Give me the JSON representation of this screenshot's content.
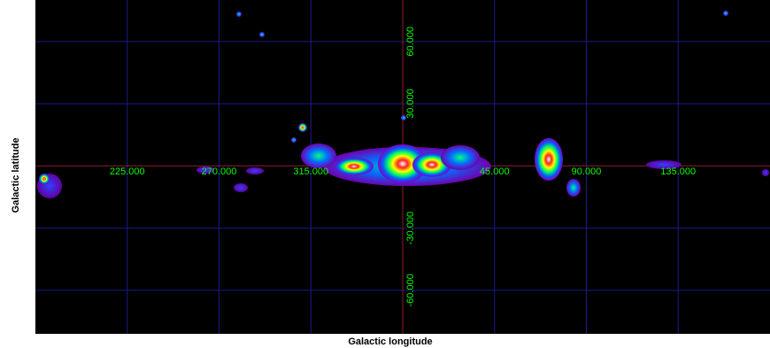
{
  "chart_data": {
    "type": "skymap",
    "xlabel": "Galactic longitude",
    "ylabel": "Galactic latitude",
    "xlim": [
      180,
      540
    ],
    "ylim": [
      -81,
      80
    ],
    "xticks": [
      {
        "value": 225,
        "label": "225.000"
      },
      {
        "value": 270,
        "label": "270.000"
      },
      {
        "value": 315,
        "label": "315.000"
      },
      {
        "value": 45,
        "label": "45.000"
      },
      {
        "value": 90,
        "label": "90.000"
      },
      {
        "value": 135,
        "label": "135.000"
      }
    ],
    "yticks": [
      {
        "value": 60,
        "label": "60.000"
      },
      {
        "value": 30,
        "label": "30.000"
      },
      {
        "value": -30,
        "label": "-30.000"
      },
      {
        "value": -60,
        "label": "-60.000"
      }
    ],
    "grid": true
  }
}
